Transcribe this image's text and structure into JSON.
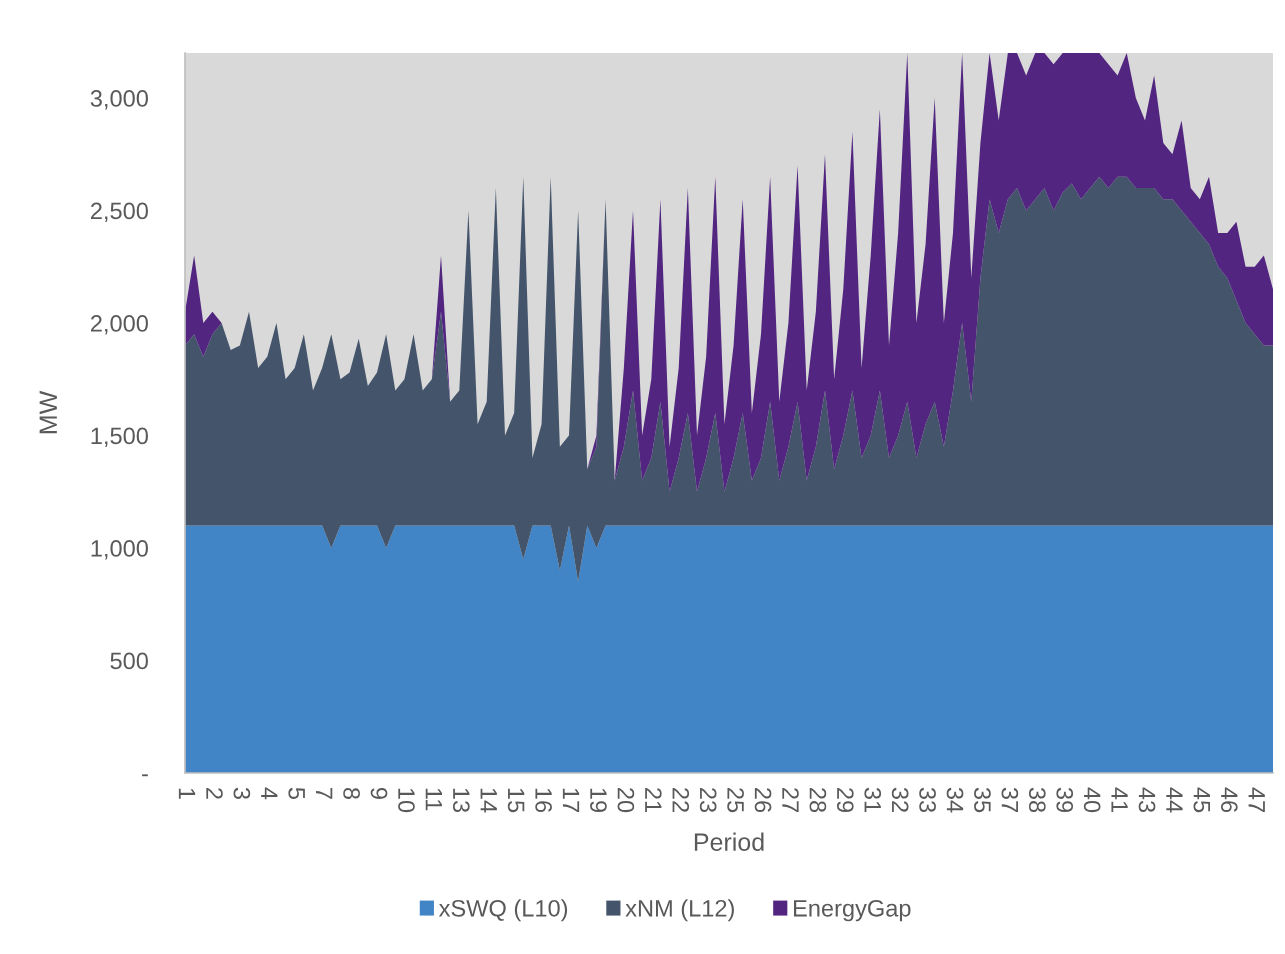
{
  "chart_data": {
    "type": "area",
    "stacked": true,
    "xlabel": "Period",
    "ylabel": "MW",
    "legend": "bottom",
    "grid": false,
    "categories": [
      "1",
      null,
      null,
      "2",
      null,
      null,
      "3",
      null,
      null,
      "4",
      null,
      null,
      "5",
      null,
      null,
      "7",
      null,
      null,
      "8",
      null,
      null,
      "9",
      null,
      null,
      "10",
      null,
      null,
      "11",
      null,
      null,
      "13",
      null,
      null,
      "14",
      null,
      null,
      "15",
      null,
      null,
      "16",
      null,
      null,
      "17",
      null,
      null,
      "19",
      null,
      null,
      "20",
      null,
      null,
      "21",
      null,
      null,
      "22",
      null,
      null,
      "23",
      null,
      null,
      "25",
      null,
      null,
      "26",
      null,
      null,
      "27",
      null,
      null,
      "28",
      null,
      null,
      "29",
      null,
      null,
      "31",
      null,
      null,
      "32",
      null,
      null,
      "33",
      null,
      null,
      "34",
      null,
      null,
      "35",
      null,
      null,
      "37",
      null,
      null,
      "38",
      null,
      null,
      "39",
      null,
      null,
      "40",
      null,
      null,
      "41",
      null,
      null,
      "43",
      null,
      null,
      "44",
      null,
      null,
      "45",
      null,
      null,
      "46",
      null,
      null,
      "47",
      null,
      null
    ],
    "ylim": [
      0,
      3200
    ],
    "yticks": [
      {
        "value": 0,
        "label": "-"
      },
      500,
      {
        "value": 1000,
        "label": "1,000"
      },
      {
        "value": 1500,
        "label": "1,500"
      },
      {
        "value": 2000,
        "label": "2,000"
      },
      {
        "value": 2500,
        "label": "2,500"
      },
      {
        "value": 3000,
        "label": "3,000"
      }
    ],
    "series": [
      {
        "name": "xSWQ (L10)",
        "color": "#4185c6",
        "values": [
          1100,
          1100,
          1100,
          1100,
          1100,
          1100,
          1100,
          1100,
          1100,
          1100,
          1100,
          1100,
          1100,
          1100,
          1100,
          1100,
          1000,
          1100,
          1100,
          1100,
          1100,
          1100,
          1000,
          1100,
          1100,
          1100,
          1100,
          1100,
          1100,
          1100,
          1100,
          1100,
          1100,
          1100,
          1100,
          1100,
          1100,
          950,
          1100,
          1100,
          1100,
          900,
          1100,
          850,
          1100,
          1000,
          1100,
          1100,
          1100,
          1100,
          1100,
          1100,
          1100,
          1100,
          1100,
          1100,
          1100,
          1100,
          1100,
          1100,
          1100,
          1100,
          1100,
          1100,
          1100,
          1100,
          1100,
          1100,
          1100,
          1100,
          1100,
          1100,
          1100,
          1100,
          1100,
          1100,
          1100,
          1100,
          1100,
          1100,
          1100,
          1100,
          1100,
          1100,
          1100,
          1100,
          1100,
          1100,
          1100,
          1100,
          1100,
          1100,
          1100,
          1100,
          1100,
          1100,
          1100,
          1100,
          1100,
          1100,
          1100,
          1100,
          1100,
          1100,
          1100,
          1100,
          1100,
          1100,
          1100,
          1100,
          1100,
          1100,
          1100,
          1100,
          1100,
          1100,
          1100,
          1100,
          1100,
          1100
        ]
      },
      {
        "name": "xNM (L12)",
        "color": "#44546a",
        "values": [
          800,
          850,
          750,
          850,
          900,
          780,
          800,
          950,
          700,
          750,
          900,
          650,
          700,
          850,
          600,
          700,
          950,
          650,
          680,
          830,
          620,
          680,
          950,
          600,
          650,
          850,
          600,
          650,
          950,
          550,
          600,
          1400,
          450,
          550,
          1500,
          400,
          500,
          1700,
          300,
          450,
          1550,
          550,
          400,
          1650,
          250,
          450,
          1450,
          200,
          350,
          600,
          200,
          300,
          550,
          150,
          300,
          500,
          150,
          300,
          500,
          150,
          300,
          500,
          200,
          300,
          550,
          200,
          350,
          550,
          200,
          350,
          600,
          250,
          400,
          600,
          300,
          400,
          600,
          300,
          400,
          550,
          300,
          450,
          550,
          350,
          600,
          900,
          550,
          1100,
          1450,
          1300,
          1450,
          1500,
          1400,
          1450,
          1500,
          1400,
          1480,
          1520,
          1450,
          1500,
          1550,
          1500,
          1550,
          1550,
          1500,
          1500,
          1500,
          1450,
          1450,
          1400,
          1350,
          1300,
          1250,
          1150,
          1100,
          1000,
          900,
          850,
          800,
          800
        ]
      },
      {
        "name": "EnergyGap",
        "color": "#512580",
        "values": [
          150,
          350,
          150,
          100,
          0,
          0,
          0,
          0,
          0,
          0,
          0,
          0,
          0,
          0,
          0,
          0,
          0,
          0,
          0,
          0,
          0,
          0,
          0,
          0,
          0,
          0,
          0,
          0,
          250,
          0,
          0,
          0,
          0,
          0,
          0,
          0,
          0,
          0,
          0,
          0,
          0,
          0,
          0,
          0,
          0,
          50,
          0,
          0,
          350,
          800,
          200,
          350,
          900,
          200,
          400,
          1000,
          250,
          450,
          1050,
          300,
          500,
          950,
          300,
          550,
          1000,
          350,
          550,
          1050,
          400,
          600,
          1050,
          400,
          650,
          1150,
          400,
          800,
          1250,
          500,
          900,
          1550,
          600,
          800,
          1350,
          550,
          700,
          1200,
          550,
          600,
          650,
          500,
          650,
          600,
          600,
          650,
          600,
          650,
          620,
          580,
          650,
          600,
          550,
          550,
          450,
          550,
          400,
          300,
          500,
          250,
          200,
          400,
          150,
          150,
          300,
          150,
          200,
          350,
          250,
          300,
          400,
          250
        ]
      }
    ]
  }
}
